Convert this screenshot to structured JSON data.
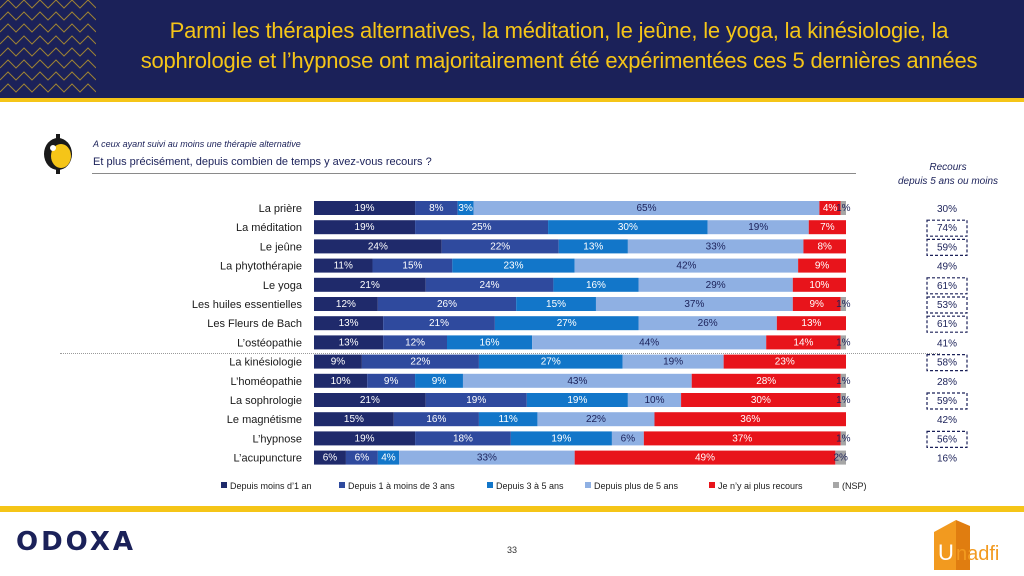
{
  "header": {
    "title_line1": "Parmi les thérapies alternatives, la méditation, le jeûne, le yoga, la kinésiologie, la",
    "title_line2": "sophrologie et l’hypnose ont majoritairement été expérimentées ces 5 dernières années"
  },
  "question": {
    "base": "A ceux ayant suivi au moins une thérapie alternative",
    "text": "Et plus précisément, depuis combien de temps y avez-vous recours ?"
  },
  "recours": {
    "title_line1": "Recours",
    "title_line2": "depuis 5 ans ou moins"
  },
  "footer": {
    "logo": "ODOXA",
    "page_number": "33",
    "partner_logo": "Unadfi"
  },
  "colors": {
    "navy": "#1b2159",
    "yellow": "#f5c518",
    "s1": "#1f2a6b",
    "s2": "#2f4a9e",
    "s3": "#1276c9",
    "s4": "#8fb0e3",
    "s5": "#e8141b",
    "s6": "#a6a6a6"
  },
  "chart_data": {
    "type": "bar",
    "orientation": "horizontal-stacked-100",
    "categories": [
      "La prière",
      "La méditation",
      "Le jeûne",
      "La phytothérapie",
      "Le yoga",
      "Les huiles essentielles",
      "Les Fleurs de Bach",
      "L’ostéopathie",
      "La kinésiologie",
      "L’homéopathie",
      "La sophrologie",
      "Le magnétisme",
      "L’hypnose",
      "L’acupuncture"
    ],
    "series": [
      {
        "name": "Depuis moins d’1 an",
        "color": "#1f2a6b",
        "values": [
          19,
          19,
          24,
          11,
          21,
          12,
          13,
          13,
          9,
          10,
          21,
          15,
          19,
          6
        ]
      },
      {
        "name": "Depuis 1 à moins de 3 ans",
        "color": "#2f4a9e",
        "values": [
          8,
          25,
          22,
          15,
          24,
          26,
          21,
          12,
          22,
          9,
          19,
          16,
          18,
          6
        ]
      },
      {
        "name": "Depuis 3 à 5 ans",
        "color": "#1276c9",
        "values": [
          3,
          30,
          13,
          23,
          16,
          15,
          27,
          16,
          27,
          9,
          19,
          11,
          19,
          4
        ]
      },
      {
        "name": "Depuis plus de 5 ans",
        "color": "#8fb0e3",
        "values": [
          65,
          19,
          33,
          42,
          29,
          37,
          26,
          44,
          19,
          43,
          10,
          22,
          6,
          33
        ]
      },
      {
        "name": "Je n’y ai plus recours",
        "color": "#e8141b",
        "values": [
          4,
          7,
          8,
          9,
          10,
          9,
          13,
          14,
          23,
          28,
          30,
          36,
          37,
          49
        ]
      },
      {
        "name": "(NSP)",
        "color": "#a6a6a6",
        "values": [
          1,
          0,
          0,
          0,
          0,
          1,
          0,
          1,
          0,
          1,
          1,
          0,
          1,
          2
        ]
      }
    ],
    "recours_5ans": [
      "30%",
      "74%",
      "59%",
      "49%",
      "61%",
      "53%",
      "61%",
      "41%",
      "58%",
      "28%",
      "59%",
      "42%",
      "56%",
      "16%"
    ],
    "recours_highlighted": [
      false,
      true,
      true,
      false,
      true,
      true,
      true,
      false,
      true,
      false,
      true,
      false,
      true,
      false
    ],
    "legend_position": "bottom",
    "xlim": [
      0,
      100
    ]
  }
}
